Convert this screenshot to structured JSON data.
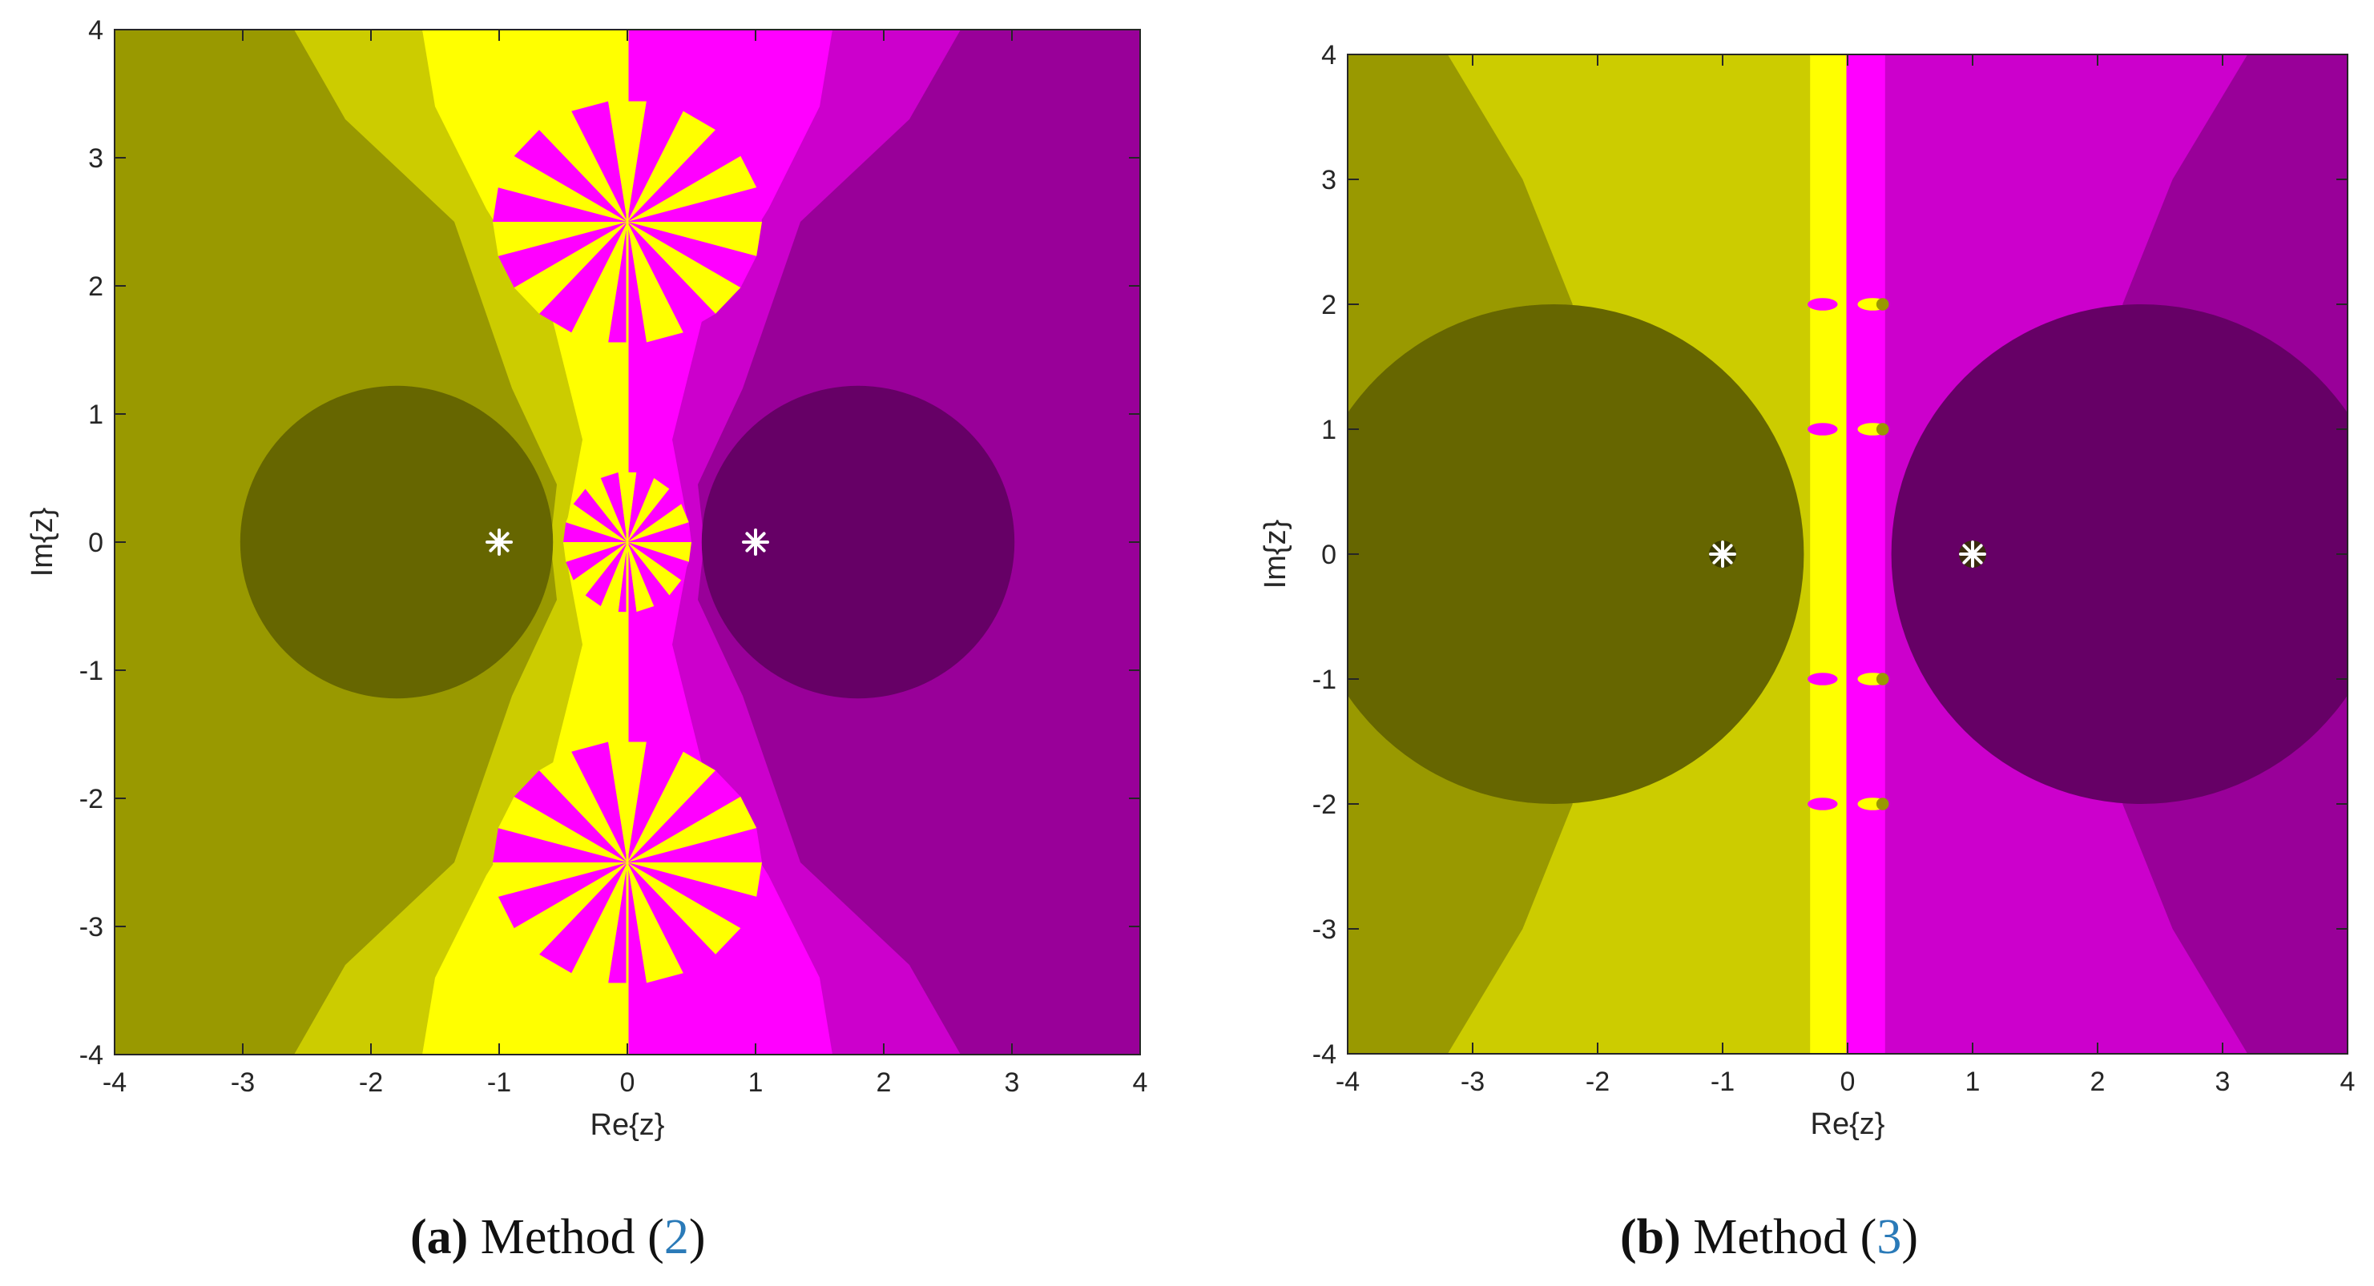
{
  "chart_data": [
    {
      "type": "heatmap",
      "panel_id": "a",
      "caption": {
        "letter": "(a)",
        "text": "Method",
        "ref_open": "(",
        "ref": "2",
        "ref_close": ")"
      },
      "xlabel": "Re{z}",
      "ylabel": "Im{z}",
      "xlim": [
        -4,
        4
      ],
      "ylim": [
        -4,
        4
      ],
      "xticks": [
        -4,
        -3,
        -2,
        -1,
        0,
        1,
        2,
        3,
        4
      ],
      "yticks": [
        -4,
        -3,
        -2,
        -1,
        0,
        1,
        2,
        3,
        4
      ],
      "roots": [
        {
          "re": -1,
          "im": 0
        },
        {
          "re": 1,
          "im": 0
        }
      ],
      "basin_colors": {
        "left_far": "#999900",
        "left_near": "#cccc00",
        "left_edge": "#ffff00",
        "left_core": "#666600",
        "right_far": "#990099",
        "right_near": "#cc00cc",
        "right_edge": "#ff00ff",
        "right_core": "#660066"
      },
      "core_disks": [
        {
          "re": -1.8,
          "im": 0,
          "r": 1.22
        },
        {
          "re": 1.8,
          "im": 0,
          "r": 1.22
        }
      ],
      "fractal_centers": [
        {
          "re": 0,
          "im": 2.5
        },
        {
          "re": 0,
          "im": 0
        },
        {
          "re": 0,
          "im": -2.5
        }
      ]
    },
    {
      "type": "heatmap",
      "panel_id": "b",
      "caption": {
        "letter": "(b)",
        "text": "Method",
        "ref_open": "(",
        "ref": "3",
        "ref_close": ")"
      },
      "xlabel": "Re{z}",
      "ylabel": "Im{z}",
      "xlim": [
        -4,
        4
      ],
      "ylim": [
        -4,
        4
      ],
      "xticks": [
        -4,
        -3,
        -2,
        -1,
        0,
        1,
        2,
        3,
        4
      ],
      "yticks": [
        -4,
        -3,
        -2,
        -1,
        0,
        1,
        2,
        3,
        4
      ],
      "roots": [
        {
          "re": -1,
          "im": 0
        },
        {
          "re": 1,
          "im": 0
        }
      ],
      "basin_colors": {
        "left_far": "#999900",
        "left_near": "#cccc00",
        "left_edge": "#ffff00",
        "left_core": "#666600",
        "right_far": "#990099",
        "right_near": "#cc00cc",
        "right_edge": "#ff00ff",
        "right_core": "#660066"
      },
      "core_disks": [
        {
          "re": -2.35,
          "im": 0,
          "r": 2.0
        },
        {
          "re": 2.35,
          "im": 0,
          "r": 2.0
        }
      ],
      "fractal_centers": [
        {
          "re": 0,
          "im": 2.0
        },
        {
          "re": 0,
          "im": 1.0
        },
        {
          "re": 0,
          "im": -1.0
        },
        {
          "re": 0,
          "im": -2.0
        }
      ]
    }
  ]
}
